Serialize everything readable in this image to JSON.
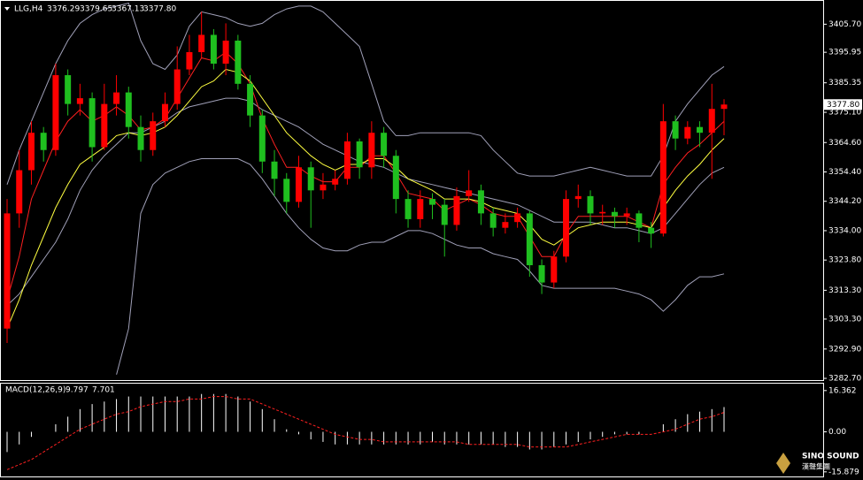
{
  "chart_data": [
    {
      "type": "candlestick",
      "title": "LLG,H4",
      "last_close_label": "3377.80",
      "up_color": "#ff0000",
      "down_color": "#1fbf1f",
      "open": [
        3300,
        3340,
        3355,
        3368,
        3362,
        3388,
        3378,
        3380,
        3363,
        3378,
        3382,
        3370,
        3362,
        3372,
        3378,
        3390,
        3396,
        3402,
        3392,
        3400,
        3385,
        3374,
        3358,
        3352,
        3344,
        3356,
        3348,
        3350,
        3352,
        3365,
        3356,
        3368,
        3360,
        3345,
        3338,
        3345,
        3343,
        3336,
        3346,
        3348,
        3340,
        3335,
        3337,
        3340,
        3322,
        3316,
        3325,
        3345,
        3346,
        3340,
        3340.5,
        3339,
        3340,
        3335,
        3333,
        3372,
        3366,
        3370,
        3368,
        3376.29
      ],
      "high": [
        3345,
        3362,
        3372,
        3370,
        3392,
        3390,
        3385,
        3382,
        3385,
        3388,
        3384,
        3374,
        3375,
        3382,
        3398,
        3402,
        3410,
        3404,
        3406,
        3402,
        3388,
        3376,
        3362,
        3354,
        3360,
        3358,
        3354,
        3355,
        3368,
        3366,
        3372,
        3370,
        3362,
        3348,
        3348,
        3347,
        3345,
        3349,
        3355,
        3350,
        3342,
        3340,
        3342,
        3341,
        3324,
        3327,
        3348,
        3350,
        3348,
        3343,
        3342,
        3342,
        3341,
        3337,
        3378,
        3374,
        3372,
        3372,
        3385,
        3379.65
      ],
      "low": [
        3295,
        3335,
        3350,
        3358,
        3360,
        3374,
        3374,
        3358,
        3362,
        3374,
        3366,
        3358,
        3360,
        3370,
        3376,
        3388,
        3394,
        3390,
        3388,
        3383,
        3370,
        3354,
        3346,
        3340,
        3342,
        3335,
        3345,
        3348,
        3350,
        3352,
        3352,
        3356,
        3340,
        3335,
        3335,
        3338,
        3325,
        3334,
        3344,
        3336,
        3332,
        3333,
        3335,
        3318,
        3312,
        3314,
        3323,
        3342,
        3336,
        3336,
        3335,
        3336,
        3330,
        3328,
        3332,
        3362,
        3364,
        3363,
        3352,
        3367.13
      ],
      "close": [
        3340,
        3355,
        3368,
        3362,
        3388,
        3378,
        3380,
        3363,
        3378,
        3382,
        3370,
        3362,
        3372,
        3378,
        3390,
        3396,
        3402,
        3392,
        3400,
        3385,
        3374,
        3358,
        3352,
        3344,
        3356,
        3348,
        3350,
        3352,
        3365,
        3356,
        3368,
        3360,
        3345,
        3338,
        3345,
        3343,
        3336,
        3346,
        3348,
        3340,
        3335,
        3337,
        3340,
        3322,
        3316,
        3325,
        3345,
        3346,
        3340,
        3340.5,
        3339,
        3340,
        3335,
        3333,
        3372,
        3366,
        3370,
        3368,
        3376.29,
        3377.8
      ],
      "lines": [
        {
          "color": "#a0a0b8",
          "values": [
            3350,
            3362,
            3372,
            3382,
            3392,
            3400,
            3406,
            3409,
            3411,
            3412,
            3413,
            3400,
            3392,
            3390,
            3395,
            3405,
            3410,
            3409,
            3408,
            3406,
            3405,
            3406,
            3409,
            3411,
            3412,
            3412,
            3410,
            3406,
            3402,
            3398,
            3385,
            3372,
            3367,
            3367,
            3368,
            3368,
            3368,
            3368,
            3368,
            3367,
            3362,
            3358,
            3354,
            3353,
            3353,
            3353,
            3354,
            3355,
            3356,
            3355,
            3354,
            3353,
            3353,
            3353,
            3360,
            3372,
            3378,
            3383,
            3388,
            3391
          ]
        },
        {
          "color": "#a0a0b8",
          "values": [
            3308,
            3312,
            3318,
            3324,
            3330,
            3338,
            3348,
            3355,
            3360,
            3364,
            3368,
            3368,
            3370,
            3372,
            3375,
            3377,
            3378,
            3379,
            3380,
            3380,
            3379,
            3376,
            3374,
            3372,
            3370,
            3367,
            3364,
            3362,
            3360,
            3358,
            3357,
            3356,
            3354,
            3352,
            3351,
            3350,
            3349,
            3348,
            3347,
            3346,
            3345,
            3344,
            3343,
            3341,
            3339,
            3337,
            3337,
            3337,
            3337,
            3336,
            3335,
            3335,
            3334,
            3333,
            3335,
            3340,
            3345,
            3350,
            3354,
            3356
          ]
        },
        {
          "color": "#a0a0b8",
          "values": [
            null,
            null,
            null,
            null,
            null,
            null,
            null,
            null,
            null,
            3284,
            3300,
            3340,
            3350,
            3354,
            3356,
            3358,
            3359,
            3359,
            3359,
            3359,
            3357,
            3352,
            3346,
            3340,
            3335,
            3331,
            3328,
            3327,
            3327,
            3329,
            3330,
            3330,
            3332,
            3334,
            3334,
            3333,
            3331,
            3329,
            3328,
            3328,
            3326,
            3325,
            3324,
            3320,
            3315,
            3314,
            3314,
            3314,
            3314,
            3314,
            3314,
            3313,
            3312,
            3310,
            3306,
            3310,
            3315,
            3318,
            3318,
            3319
          ]
        },
        {
          "color": "#ff2020",
          "values": [
            3310,
            3325,
            3345,
            3355,
            3365,
            3372,
            3376,
            3372,
            3374,
            3377,
            3374,
            3369,
            3370,
            3373,
            3380,
            3387,
            3394,
            3393,
            3396,
            3392,
            3385,
            3373,
            3364,
            3356,
            3356,
            3353,
            3351,
            3351,
            3356,
            3356,
            3360,
            3360,
            3354,
            3347,
            3346,
            3345,
            3341,
            3343,
            3345,
            3343,
            3340,
            3339,
            3339,
            3332,
            3325,
            3325,
            3333,
            3339,
            3339,
            3339,
            3339,
            3339,
            3337,
            3335,
            3350,
            3356,
            3361,
            3364,
            3368,
            3372
          ]
        },
        {
          "color": "#ffff40",
          "values": [
            3300,
            3310,
            3322,
            3332,
            3342,
            3350,
            3357,
            3360,
            3363,
            3367,
            3368,
            3367,
            3368,
            3370,
            3374,
            3379,
            3384,
            3386,
            3390,
            3389,
            3386,
            3380,
            3374,
            3368,
            3364,
            3360,
            3357,
            3355,
            3357,
            3357,
            3359,
            3359,
            3356,
            3352,
            3350,
            3348,
            3345,
            3345,
            3345,
            3344,
            3342,
            3341,
            3340,
            3336,
            3331,
            3329,
            3332,
            3335,
            3336,
            3337,
            3337,
            3337,
            3336,
            3335,
            3342,
            3348,
            3353,
            3357,
            3362,
            3366
          ]
        }
      ],
      "ylim": [
        3282.1,
        3413.8
      ],
      "yticks": [
        {
          "value": 3405.7,
          "label": "3405.70"
        },
        3395.95,
        3385.35,
        {
          "value": 3375.1,
          "label": "3375.10"
        },
        {
          "value": 3364.6,
          "label": "3364.60"
        },
        {
          "value": 3354.4,
          "label": "3354.40"
        },
        {
          "value": 3344.2,
          "label": "3344.20"
        },
        {
          "value": 3334,
          "label": "3334.00"
        },
        {
          "value": 3323.8,
          "label": "3323.80"
        },
        {
          "value": 3313.3,
          "label": "3313.30"
        },
        {
          "value": 3303.3,
          "label": "3303.30"
        },
        {
          "value": 3292.9,
          "label": "3292.90"
        },
        {
          "value": 3282.7,
          "label": "3282.70"
        }
      ]
    },
    {
      "type": "macd",
      "title": "MACD(12,26,9)",
      "histogram_color": "#ffffff",
      "signal_color": "#ff2020",
      "histogram": [
        -8,
        -5,
        -2,
        0,
        3,
        6,
        9,
        11,
        12,
        13,
        14,
        14,
        14,
        14,
        14,
        14,
        15,
        15,
        15,
        14,
        12,
        9,
        5,
        1,
        -1,
        -3,
        -4,
        -5,
        -5,
        -5,
        -5,
        -5,
        -5,
        -5,
        -5,
        -4,
        -5,
        -5,
        -5,
        -5,
        -5,
        -6,
        -6,
        -7,
        -7,
        -6,
        -5,
        -4,
        -3,
        -2,
        -1,
        -1,
        -1,
        0,
        3,
        5,
        7,
        8,
        9,
        9.797
      ],
      "signal": [
        -15,
        -13,
        -11,
        -8,
        -5,
        -2,
        1,
        3,
        5,
        7,
        8,
        10,
        11,
        12,
        12,
        13,
        13,
        14,
        14,
        13,
        13,
        11,
        9,
        7,
        5,
        3,
        1,
        -1,
        -2,
        -3,
        -3,
        -4,
        -4,
        -4,
        -4,
        -4,
        -4,
        -4,
        -5,
        -5,
        -5,
        -5,
        -5,
        -6,
        -6,
        -6,
        -6,
        -5,
        -4,
        -3,
        -2,
        -1,
        -1,
        -1,
        0,
        1,
        3,
        5,
        6,
        7.701
      ],
      "ylim": [
        -17.7,
        19.1
      ],
      "yticks": [
        16.362,
        {
          "value": 0,
          "label": "0.00"
        },
        -15.879
      ]
    }
  ],
  "watermark": {
    "brand": "SINO SOUND",
    "subtitle": "漢聲集團"
  }
}
